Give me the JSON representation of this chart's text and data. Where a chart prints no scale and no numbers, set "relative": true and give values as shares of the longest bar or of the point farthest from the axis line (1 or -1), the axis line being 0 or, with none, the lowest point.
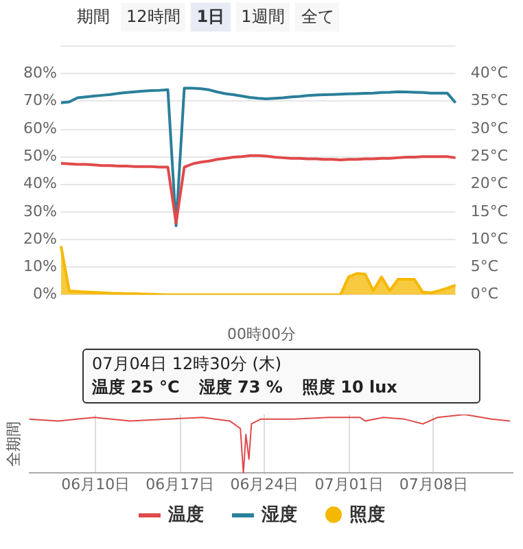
{
  "chart_data": [
    {
      "type": "line",
      "annotations": [
        "期間",
        "12時間",
        "1日",
        "1週間",
        "全て",
        "00時00分",
        "07月04日 12時30分 (木)",
        "温度 25 °C",
        "湿度 73 %",
        "照度 10 lux"
      ],
      "categories": [
        null,
        null,
        null,
        null,
        null,
        null,
        null,
        null,
        null,
        null,
        null,
        null,
        null,
        null,
        null,
        null,
        null,
        null,
        null,
        null,
        null,
        null,
        null,
        null,
        null,
        null,
        null,
        null,
        null,
        null,
        null,
        null,
        null,
        null,
        null,
        null,
        null,
        null,
        null,
        null,
        null,
        null,
        null,
        null,
        null,
        null,
        null,
        null,
        null
      ],
      "ylim": [
        0,
        90
      ],
      "yticks": [
        {
          "value": 0,
          "label": "0%"
        },
        {
          "value": 10,
          "label": "10%"
        },
        {
          "value": 20,
          "label": "20%"
        },
        {
          "value": 30,
          "label": "30%"
        },
        {
          "value": 40,
          "label": "40%"
        },
        {
          "value": 50,
          "label": "50%"
        },
        {
          "value": 60,
          "label": "60%"
        },
        {
          "value": 70,
          "label": "70%"
        },
        {
          "value": 80,
          "label": "80%"
        },
        {
          "value": 90,
          "label": null
        }
      ],
      "y2lim": [
        0,
        45
      ],
      "y2ticks": [
        {
          "value": 0,
          "label": "0°C"
        },
        {
          "value": 5,
          "label": "5°C"
        },
        {
          "value": 10,
          "label": "10°C"
        },
        {
          "value": 15,
          "label": "15°C"
        },
        {
          "value": 20,
          "label": "20°C"
        },
        {
          "value": 25,
          "label": "25°C"
        },
        {
          "value": 30,
          "label": "30°C"
        },
        {
          "value": 35,
          "label": "35°C"
        },
        {
          "value": 40,
          "label": "40°C"
        },
        {
          "value": 45,
          "label": null
        }
      ],
      "grid": "y",
      "legend": "bottom",
      "series": [
        {
          "name": "温度",
          "color": "#e04a4a",
          "axis": "y2",
          "values": [
            23.8,
            23.7,
            23.6,
            23.6,
            23.5,
            23.4,
            23.4,
            23.3,
            23.3,
            23.2,
            23.2,
            23.2,
            23.1,
            23.1,
            13,
            23.1,
            23.7,
            24.0,
            24.2,
            24.5,
            24.7,
            24.9,
            25.0,
            25.2,
            25.2,
            25.1,
            24.9,
            24.8,
            24.7,
            24.7,
            24.6,
            24.6,
            24.5,
            24.5,
            24.4,
            24.5,
            24.5,
            24.6,
            24.6,
            24.7,
            24.7,
            24.8,
            24.9,
            24.9,
            25.0,
            25.0,
            25.0,
            25.0,
            24.8
          ]
        },
        {
          "name": "湿度",
          "color": "#2a7f9a",
          "values": [
            69.5,
            69.8,
            71.3,
            71.6,
            71.9,
            72.2,
            72.5,
            72.9,
            73.2,
            73.5,
            73.7,
            73.9,
            74.0,
            74.2,
            25,
            74.8,
            74.8,
            74.6,
            74.2,
            73.4,
            72.8,
            72.4,
            71.9,
            71.4,
            71.1,
            70.9,
            71.1,
            71.3,
            71.6,
            71.8,
            72.1,
            72.3,
            72.4,
            72.5,
            72.6,
            72.7,
            72.8,
            72.9,
            73.0,
            73.2,
            73.3,
            73.5,
            73.4,
            73.3,
            73.2,
            73.0,
            73.0,
            73,
            69.5
          ]
        },
        {
          "name": "照度",
          "color": "#f5b800",
          "type": "area",
          "values": [
            17.6,
            1.4,
            1.2,
            1,
            0.9,
            0.8,
            0.6,
            0.5,
            0.4,
            0.4,
            0.3,
            0.2,
            0.1,
            0,
            0,
            0,
            0,
            0,
            0,
            0,
            0,
            0,
            0,
            0,
            0,
            0,
            0,
            0,
            0,
            0,
            0,
            0,
            0,
            0,
            0,
            6.5,
            7.7,
            7.5,
            1.5,
            6.5,
            1.5,
            5.6,
            5.6,
            5.6,
            1,
            0.7,
            1.5,
            2.4,
            3.5
          ]
        }
      ]
    },
    {
      "type": "line",
      "relative": true,
      "ylabel": "全期間",
      "tick_labels": "x",
      "grid": "x",
      "xlim": [
        "--06-04T12:00",
        "--07-14T12:00"
      ],
      "xticks": [
        {
          "value": "--06-10",
          "label": "06月10日"
        },
        {
          "value": "--06-17",
          "label": "06月17日"
        },
        {
          "value": "--06-24",
          "label": "06月24日"
        },
        {
          "value": "--07-01",
          "label": "07月01日"
        },
        {
          "value": "--07-08",
          "label": "07月08日"
        }
      ],
      "series": [
        {
          "color": "#e04a4a",
          "x": [
            "--06-04T12:00",
            "--06-06T22:00",
            "--06-09T22:00",
            "--06-12T21:00",
            "--06-15T21:00",
            "--06-18T21:00",
            "--06-21T03:00",
            "--06-22T00:00",
            "--06-22T06:00",
            "--06-22T11:00",
            "--06-22T17:00",
            "--06-22T22:00",
            "--06-23T16:00",
            "--06-26T09:00",
            "--06-29T09:00",
            "--07-01T22:00",
            "--07-02T08:00",
            "--07-03T20:00",
            "--07-05T15:00",
            "--07-07T03:00",
            "--07-08T08:00",
            "--07-10T14:00",
            "--07-12T20:00",
            "--07-14T08:00"
          ],
          "values": [
            0.92,
            0.89,
            0.95,
            0.89,
            0.92,
            0.95,
            0.89,
            0.76,
            0,
            0.66,
            0.24,
            0.84,
            0.92,
            0.92,
            0.95,
            0.95,
            0.89,
            0.95,
            0.92,
            0.84,
            0.95,
            1,
            0.92,
            0.89
          ]
        }
      ]
    }
  ]
}
